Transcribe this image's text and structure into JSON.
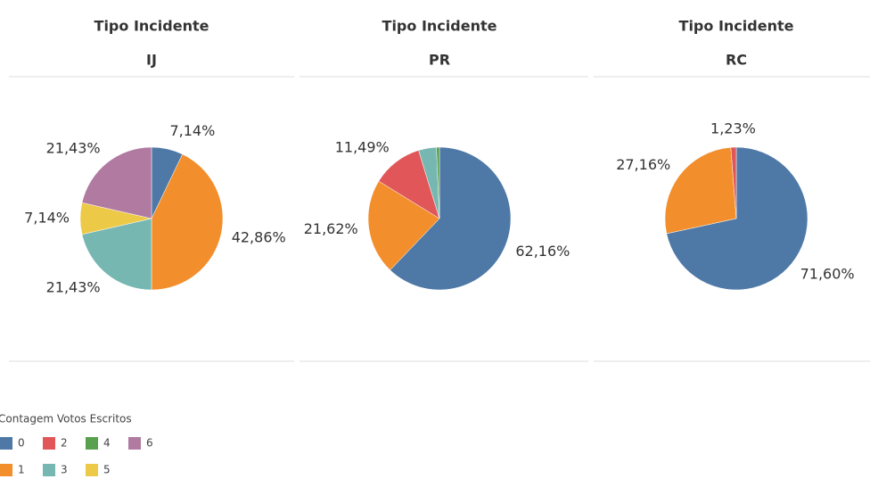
{
  "chart_data": [
    {
      "type": "pie",
      "header": "Tipo Incidente",
      "title": "IJ",
      "categories": [
        "0",
        "1",
        "3",
        "5",
        "6"
      ],
      "values": [
        7.14,
        42.86,
        21.43,
        7.14,
        21.43
      ],
      "value_labels": [
        "7,14%",
        "42,86%",
        "21,43%",
        "7,14%",
        "21,43%"
      ],
      "colors": [
        "#4e79a7",
        "#f28e2b",
        "#76b7b2",
        "#edc948",
        "#b07aa1"
      ]
    },
    {
      "type": "pie",
      "header": "Tipo Incidente",
      "title": "PR",
      "categories": [
        "0",
        "1",
        "2",
        "3",
        "4"
      ],
      "values": [
        62.16,
        21.62,
        11.49,
        4.05,
        0.68
      ],
      "value_labels": [
        "62,16%",
        "21,62%",
        "11,49%",
        null,
        null
      ],
      "colors": [
        "#4e79a7",
        "#f28e2b",
        "#e15759",
        "#76b7b2",
        "#59a14f"
      ]
    },
    {
      "type": "pie",
      "header": "Tipo Incidente",
      "title": "RC",
      "categories": [
        "0",
        "1",
        "2"
      ],
      "values": [
        71.6,
        27.16,
        1.23
      ],
      "value_labels": [
        "71,60%",
        "27,16%",
        "1,23%"
      ],
      "colors": [
        "#4e79a7",
        "#f28e2b",
        "#e15759"
      ]
    }
  ],
  "legend": {
    "title": "Contagem Votos Escritos",
    "categories": [
      "0",
      "1",
      "2",
      "3",
      "4",
      "5",
      "6"
    ],
    "colors": [
      "#4e79a7",
      "#f28e2b",
      "#e15759",
      "#76b7b2",
      "#59a14f",
      "#edc948",
      "#b07aa1"
    ]
  }
}
